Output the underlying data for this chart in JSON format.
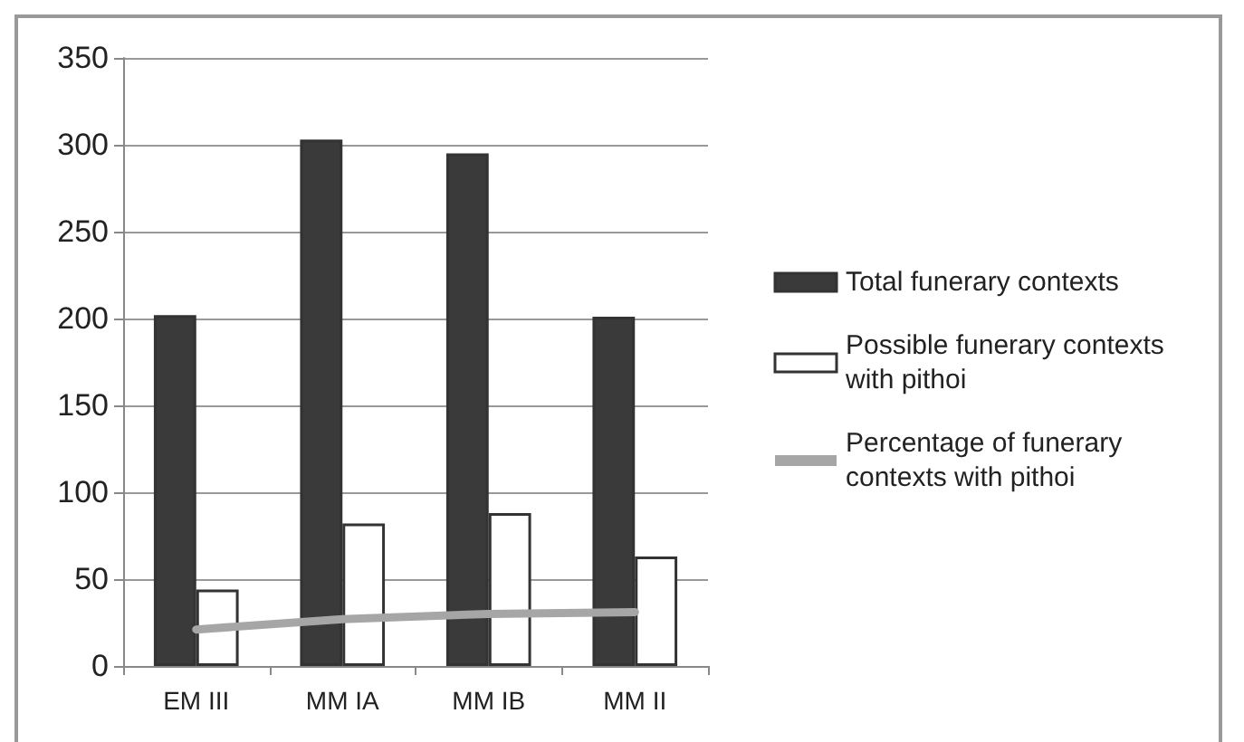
{
  "chart_data": {
    "type": "bar",
    "categories": [
      "EM III",
      "MM IA",
      "MM IB",
      "MM II"
    ],
    "series": [
      {
        "name": "Total funerary contexts",
        "color": "#3a3a3a",
        "values": [
          202,
          303,
          295,
          201
        ]
      },
      {
        "name": "Possible funerary contexts with pithoi",
        "color": "#ffffff",
        "values": [
          44,
          82,
          88,
          63
        ]
      },
      {
        "name": "Percentage of funerary contexts with pithoi",
        "type": "line",
        "color": "#a6a6a6",
        "values": [
          21,
          27,
          30,
          31
        ]
      }
    ],
    "ylim": [
      0,
      350
    ],
    "yticks": [
      0,
      50,
      100,
      150,
      200,
      250,
      300,
      350
    ],
    "grid": "y",
    "legend": "right",
    "marker": "none",
    "line_style": "solid"
  }
}
